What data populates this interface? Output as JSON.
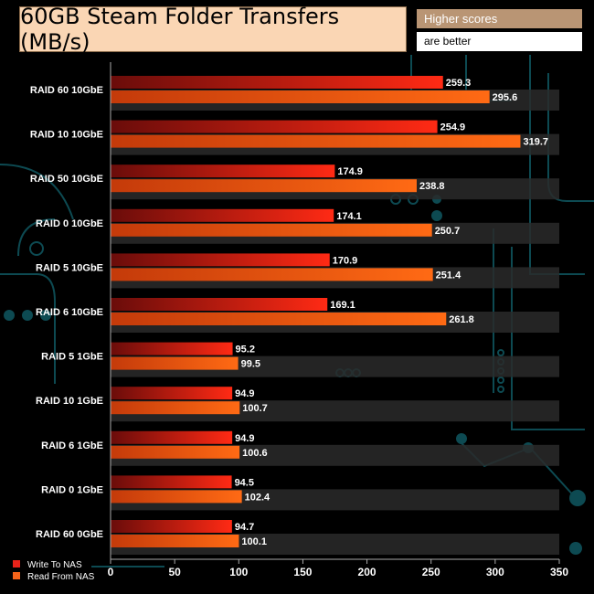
{
  "title": "60GB Steam Folder Transfers (MB/s)",
  "note": {
    "line1": "Higher scores",
    "line2": "are better"
  },
  "colors": {
    "write": "#e8231a",
    "read": "#f5631a",
    "band": "#2a2a2a",
    "axis": "#aaaaaa",
    "label": "#ffffff"
  },
  "chart_data": {
    "type": "bar",
    "orientation": "horizontal",
    "title": "60GB Steam Folder Transfers (MB/s)",
    "categories": [
      "RAID 60 10GbE",
      "RAID 10 10GbE",
      "RAID 50 10GbE",
      "RAID 0 10GbE",
      "RAID 5 10GbE",
      "RAID 6 10GbE",
      "RAID 5 1GbE",
      "RAID 10 1GbE",
      "RAID 6 1GbE",
      "RAID 0 1GbE",
      "RAID 60 0GbE"
    ],
    "series": [
      {
        "name": "Write To NAS",
        "values": [
          259.3,
          254.9,
          174.9,
          174.1,
          170.9,
          169.1,
          95.2,
          94.9,
          94.9,
          94.5,
          94.7
        ]
      },
      {
        "name": "Read From NAS",
        "values": [
          295.6,
          319.7,
          238.8,
          250.7,
          251.4,
          261.8,
          99.5,
          100.7,
          100.6,
          102.4,
          100.1
        ]
      }
    ],
    "xlim": [
      0,
      350
    ],
    "xticks": [
      0,
      50,
      100,
      150,
      200,
      250,
      300,
      350
    ],
    "legend": "bottom-left"
  }
}
